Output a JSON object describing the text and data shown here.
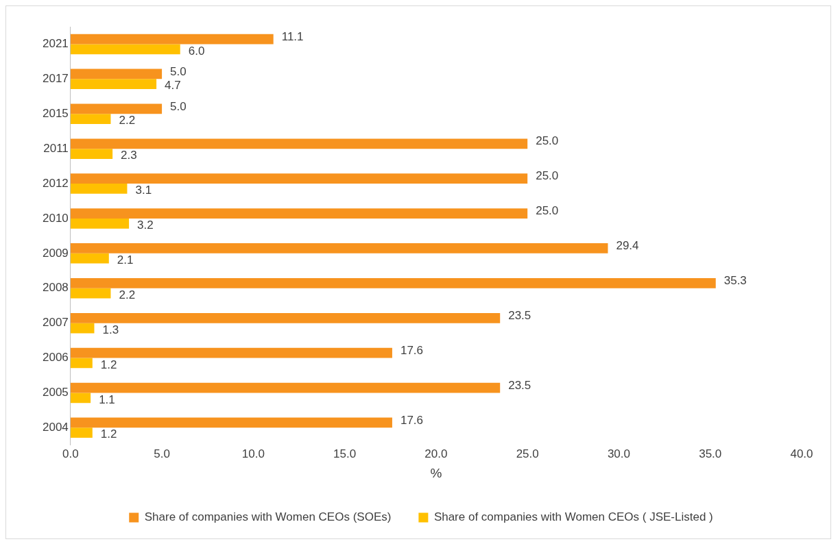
{
  "chart_data": {
    "type": "bar",
    "orientation": "horizontal",
    "xlabel": "%",
    "categories": [
      "2021",
      "2017",
      "2015",
      "2011",
      "2012",
      "2010",
      "2009",
      "2008",
      "2007",
      "2006",
      "2005",
      "2004"
    ],
    "series": [
      {
        "name": "Share of companies with Women CEOs (SOEs)",
        "color": "#f7931e",
        "values": [
          11.1,
          5.0,
          5.0,
          25.0,
          25.0,
          25.0,
          29.4,
          35.3,
          23.5,
          17.6,
          23.5,
          17.6
        ],
        "value_labels": [
          "11.1",
          "5.0",
          "5.0",
          "25.0",
          "25.0",
          "25.0",
          "29.4",
          "35.3",
          "23.5",
          "17.6",
          "23.5",
          "17.6"
        ]
      },
      {
        "name": "Share of companies with Women CEOs ( JSE-Listed )",
        "color": "#ffc000",
        "values": [
          6.0,
          4.7,
          2.2,
          2.3,
          3.1,
          3.2,
          2.1,
          2.2,
          1.3,
          1.2,
          1.1,
          1.2
        ],
        "value_labels": [
          "6.0",
          "4.7",
          "2.2",
          "2.3",
          "3.1",
          "3.2",
          "2.1",
          "2.2",
          "1.3",
          "1.2",
          "1.1",
          "1.2"
        ]
      }
    ],
    "xlim": [
      0,
      40
    ],
    "xticks": [
      {
        "value": 0,
        "label": "0.0"
      },
      {
        "value": 5,
        "label": "5.0"
      },
      {
        "value": 10,
        "label": "10.0"
      },
      {
        "value": 15,
        "label": "15.0"
      },
      {
        "value": 20,
        "label": "20.0"
      },
      {
        "value": 25,
        "label": "25.0"
      },
      {
        "value": 30,
        "label": "30.0"
      },
      {
        "value": 35,
        "label": "35.0"
      },
      {
        "value": 40,
        "label": "40.0"
      }
    ],
    "grid": false,
    "legend": "bottom"
  }
}
